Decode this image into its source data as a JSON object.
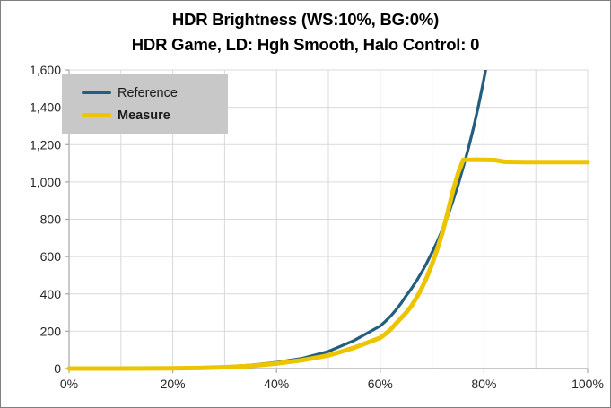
{
  "title": {
    "line1": "HDR Brightness (WS:10%, BG:0%)",
    "line2": "HDR Game, LD: Hgh Smooth, Halo Control: 0"
  },
  "legend": {
    "background": "#c8c8c8",
    "position": "top-left",
    "items": [
      {
        "label": "Reference",
        "bold": false
      },
      {
        "label": "Measure",
        "bold": true
      }
    ]
  },
  "colors": {
    "gridline": "#d9d9d9",
    "axis": "#a6a6a6",
    "tick": "#a6a6a6",
    "axis_text": "#262626",
    "window_border": "#808080",
    "reference_line": "#235e7e",
    "measure_line": "#ecc500"
  },
  "chart_data": {
    "type": "line",
    "title": "HDR Brightness (WS:10%, BG:0%)",
    "subtitle": "HDR Game, LD: Hgh Smooth, Halo Control: 0",
    "xlabel": "",
    "ylabel": "",
    "xlim": [
      0,
      100
    ],
    "ylim": [
      0,
      1600
    ],
    "grid": true,
    "legend_position": "top-left",
    "x_gridlines": [
      0,
      10,
      20,
      30,
      40,
      50,
      60,
      70,
      80,
      90,
      100
    ],
    "x_ticks": [
      {
        "value": 0,
        "label": "0%"
      },
      {
        "value": 20,
        "label": "20%"
      },
      {
        "value": 40,
        "label": "40%"
      },
      {
        "value": 60,
        "label": "60%"
      },
      {
        "value": 80,
        "label": "80%"
      },
      {
        "value": 100,
        "label": "100%"
      }
    ],
    "y_ticks": [
      {
        "value": 0,
        "label": "0"
      },
      {
        "value": 200,
        "label": "200"
      },
      {
        "value": 400,
        "label": "400"
      },
      {
        "value": 600,
        "label": "600"
      },
      {
        "value": 800,
        "label": "800"
      },
      {
        "value": 1000,
        "label": "1,000"
      },
      {
        "value": 1200,
        "label": "1,200"
      },
      {
        "value": 1400,
        "label": "1,400"
      },
      {
        "value": 1600,
        "label": "1,600"
      }
    ],
    "series": [
      {
        "name": "Reference",
        "color": "#235e7e",
        "width": 3.25,
        "points": [
          [
            0,
            0
          ],
          [
            5,
            0.03
          ],
          [
            10,
            0.3
          ],
          [
            15,
            1
          ],
          [
            20,
            2.5
          ],
          [
            25,
            5.2
          ],
          [
            30,
            10.3
          ],
          [
            35,
            18
          ],
          [
            40,
            33
          ],
          [
            45,
            55
          ],
          [
            50,
            92
          ],
          [
            55,
            151
          ],
          [
            60,
            228
          ],
          [
            61,
            253
          ],
          [
            62,
            281
          ],
          [
            63,
            313
          ],
          [
            64,
            349
          ],
          [
            65,
            390
          ],
          [
            66,
            428
          ],
          [
            67,
            470
          ],
          [
            68,
            516
          ],
          [
            69,
            567
          ],
          [
            70,
            623
          ],
          [
            71,
            681
          ],
          [
            72,
            745
          ],
          [
            73,
            816
          ],
          [
            74,
            896
          ],
          [
            75,
            983
          ],
          [
            76,
            1079
          ],
          [
            77,
            1181
          ],
          [
            78,
            1291
          ],
          [
            79,
            1415
          ],
          [
            80,
            1552
          ],
          [
            81,
            1700
          ]
        ]
      },
      {
        "name": "Measure",
        "color": "#ecc500",
        "width": 5,
        "points": [
          [
            0,
            0
          ],
          [
            5,
            0
          ],
          [
            10,
            0
          ],
          [
            15,
            0.5
          ],
          [
            20,
            1
          ],
          [
            25,
            3
          ],
          [
            30,
            7
          ],
          [
            35,
            14
          ],
          [
            40,
            27
          ],
          [
            45,
            45
          ],
          [
            50,
            70
          ],
          [
            55,
            112
          ],
          [
            60,
            165
          ],
          [
            61,
            185
          ],
          [
            62,
            210
          ],
          [
            63,
            240
          ],
          [
            64,
            270
          ],
          [
            65,
            300
          ],
          [
            66,
            335
          ],
          [
            67,
            380
          ],
          [
            68,
            430
          ],
          [
            69,
            490
          ],
          [
            70,
            560
          ],
          [
            71,
            640
          ],
          [
            72,
            730
          ],
          [
            73,
            835
          ],
          [
            74,
            950
          ],
          [
            75,
            1045
          ],
          [
            76,
            1118
          ],
          [
            78,
            1118
          ],
          [
            80,
            1118
          ],
          [
            82,
            1117
          ],
          [
            83,
            1113
          ],
          [
            84,
            1108
          ],
          [
            86,
            1107
          ],
          [
            88,
            1106
          ],
          [
            90,
            1106
          ],
          [
            92,
            1106
          ],
          [
            94,
            1106
          ],
          [
            96,
            1106
          ],
          [
            98,
            1106
          ],
          [
            100,
            1106
          ]
        ]
      }
    ]
  }
}
